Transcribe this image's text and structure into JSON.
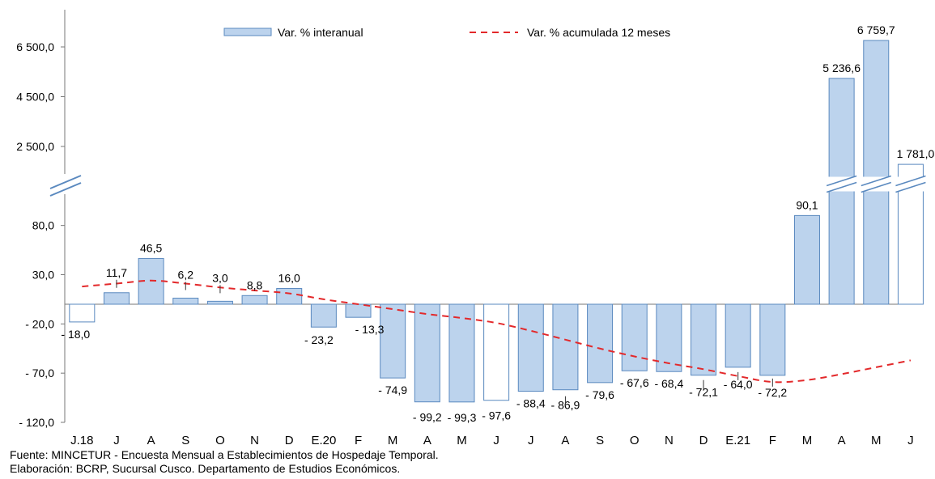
{
  "chart_data": {
    "type": "bar",
    "categories": [
      "J.18",
      "J",
      "A",
      "S",
      "O",
      "N",
      "D",
      "E.20",
      "F",
      "M",
      "A",
      "M",
      "J",
      "J",
      "A",
      "S",
      "O",
      "N",
      "D",
      "E.21",
      "F",
      "M",
      "A",
      "M",
      "J"
    ],
    "series": [
      {
        "name": "Var. % interanual",
        "type": "bar",
        "values": [
          -18.0,
          11.7,
          46.5,
          6.2,
          3.0,
          8.8,
          16.0,
          -23.2,
          -13.3,
          -74.9,
          -99.2,
          -99.3,
          -97.6,
          -88.4,
          -86.9,
          -79.6,
          -67.6,
          -68.4,
          -72.1,
          -64.0,
          -72.2,
          90.1,
          5236.6,
          6759.7,
          1781.0
        ],
        "labels": [
          "- 18,0",
          "11,7",
          "46,5",
          "6,2",
          "3,0",
          "8,8",
          "16,0",
          "- 23,2",
          "- 13,3",
          "- 74,9",
          "- 99,2",
          "- 99,3",
          "- 97,6",
          "- 88,4",
          "- 86,9",
          "- 79,6",
          "- 67,6",
          "- 68,4",
          "- 72,1",
          "- 64,0",
          "- 72,2",
          "90,1",
          "5 236,6",
          "6 759,7",
          "1 781,0"
        ],
        "outlined": [
          0,
          12,
          24
        ],
        "color": "#bcd3ed"
      },
      {
        "name": "Var. % acumulada 12 meses",
        "type": "line",
        "style": "dashed",
        "color": "#e3292b",
        "values": [
          18,
          21,
          24,
          21,
          17,
          14,
          11,
          5,
          0,
          -5,
          -10,
          -14,
          -19,
          -27,
          -36,
          -45,
          -53,
          -60,
          -66,
          -73,
          -79,
          -77,
          -71,
          -64,
          -57
        ]
      }
    ],
    "y_ticks": [
      "6 500,0",
      "4 500,0",
      "2 500,0",
      "80,0",
      "30,0",
      "- 20,0",
      "- 70,0",
      "- 120,0"
    ],
    "lower_ylim": [
      -120,
      100
    ],
    "upper_ylim": [
      1000,
      7000
    ],
    "axis_break": true,
    "legend": "top",
    "colors": {
      "bar_fill": "#bcd3ed",
      "bar_stroke": "#5a89bf",
      "line": "#e3292b"
    }
  },
  "source": {
    "line1": "Fuente: MINCETUR - Encuesta Mensual a Establecimientos de Hospedaje Temporal.",
    "line2": "Elaboración: BCRP, Sucursal Cusco. Departamento de Estudios Económicos."
  }
}
